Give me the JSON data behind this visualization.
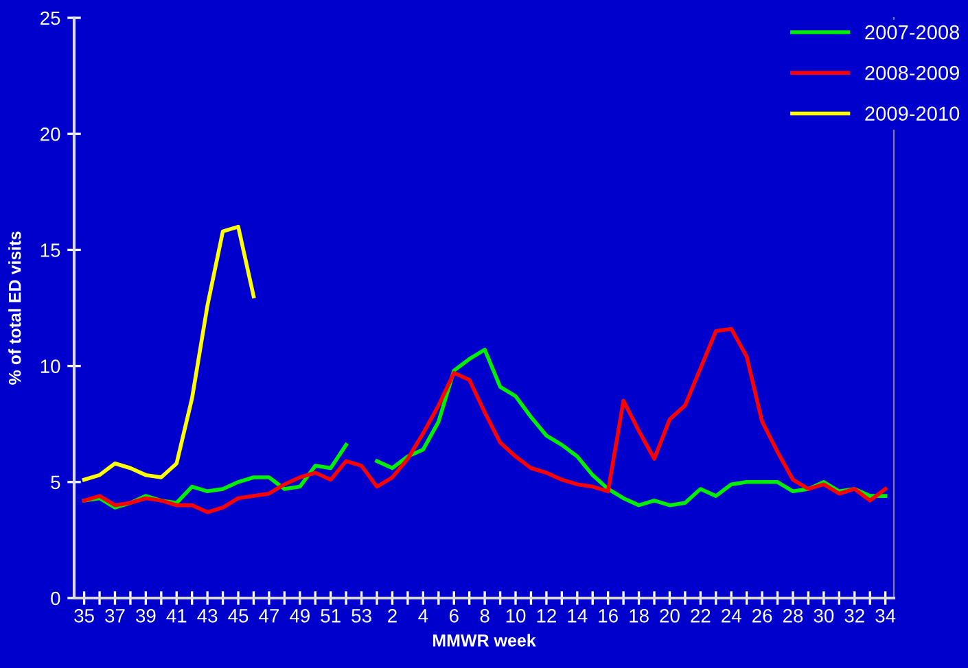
{
  "chart_data": {
    "type": "line",
    "xlabel": "MMWR week",
    "ylabel": "% of total ED visits",
    "categories": [
      "35",
      null,
      "37",
      null,
      "39",
      null,
      "41",
      null,
      "43",
      null,
      "45",
      null,
      "47",
      null,
      "49",
      null,
      "51",
      null,
      "53",
      null,
      "2",
      null,
      "4",
      null,
      "6",
      null,
      "8",
      null,
      "10",
      null,
      "12",
      null,
      "14",
      null,
      "16",
      null,
      "18",
      null,
      "20",
      null,
      "22",
      null,
      "24",
      null,
      "26",
      null,
      "28",
      null,
      "30",
      null,
      "32",
      null,
      "34"
    ],
    "series": [
      {
        "name": "2007-2008",
        "color": "#00ee00",
        "values": [
          4.2,
          4.3,
          3.9,
          4.1,
          4.4,
          4.2,
          4.1,
          4.8,
          4.6,
          4.7,
          5.0,
          5.2,
          5.2,
          4.7,
          4.8,
          5.7,
          5.6,
          6.6,
          null,
          5.9,
          5.6,
          6.1,
          6.4,
          7.6,
          9.8,
          10.3,
          10.7,
          9.1,
          8.7,
          7.8,
          7.0,
          6.6,
          6.1,
          5.3,
          4.7,
          4.3,
          4.0,
          4.2,
          4.0,
          4.1,
          4.7,
          4.4,
          4.9,
          5.0,
          5.0,
          5.0,
          4.6,
          4.7,
          5.0,
          4.6,
          4.7,
          4.4,
          4.4
        ]
      },
      {
        "name": "2008-2009",
        "color": "#ff0000",
        "values": [
          4.2,
          4.4,
          4.0,
          4.1,
          4.3,
          4.2,
          4.0,
          4.0,
          3.7,
          3.9,
          4.3,
          4.4,
          4.5,
          4.9,
          5.2,
          5.4,
          5.1,
          5.9,
          5.7,
          4.8,
          5.2,
          6.0,
          7.1,
          8.3,
          9.7,
          9.4,
          8.0,
          6.7,
          6.1,
          5.6,
          5.4,
          5.1,
          4.9,
          4.8,
          4.6,
          8.5,
          7.2,
          6.0,
          7.7,
          8.3,
          9.9,
          11.5,
          11.6,
          10.4,
          7.6,
          6.3,
          5.1,
          4.7,
          4.9,
          4.5,
          4.7,
          4.2,
          4.7
        ]
      },
      {
        "name": "2009-2010",
        "color": "#ffff00",
        "values": [
          5.1,
          5.3,
          5.8,
          5.6,
          5.3,
          5.2,
          5.8,
          8.6,
          12.6,
          15.8,
          16.0,
          13.0,
          null,
          null,
          null,
          null,
          null,
          null,
          null,
          null,
          null,
          null,
          null,
          null,
          null,
          null,
          null,
          null,
          null,
          null,
          null,
          null,
          null,
          null,
          null,
          null,
          null,
          null,
          null,
          null,
          null,
          null,
          null,
          null,
          null,
          null,
          null,
          null,
          null,
          null,
          null,
          null,
          null
        ]
      }
    ],
    "ylim": [
      0,
      25
    ],
    "yticks": [
      0,
      5,
      10,
      15,
      20,
      25
    ],
    "grid": false,
    "legend": "top right",
    "marker": "none",
    "line_style": "solid"
  }
}
